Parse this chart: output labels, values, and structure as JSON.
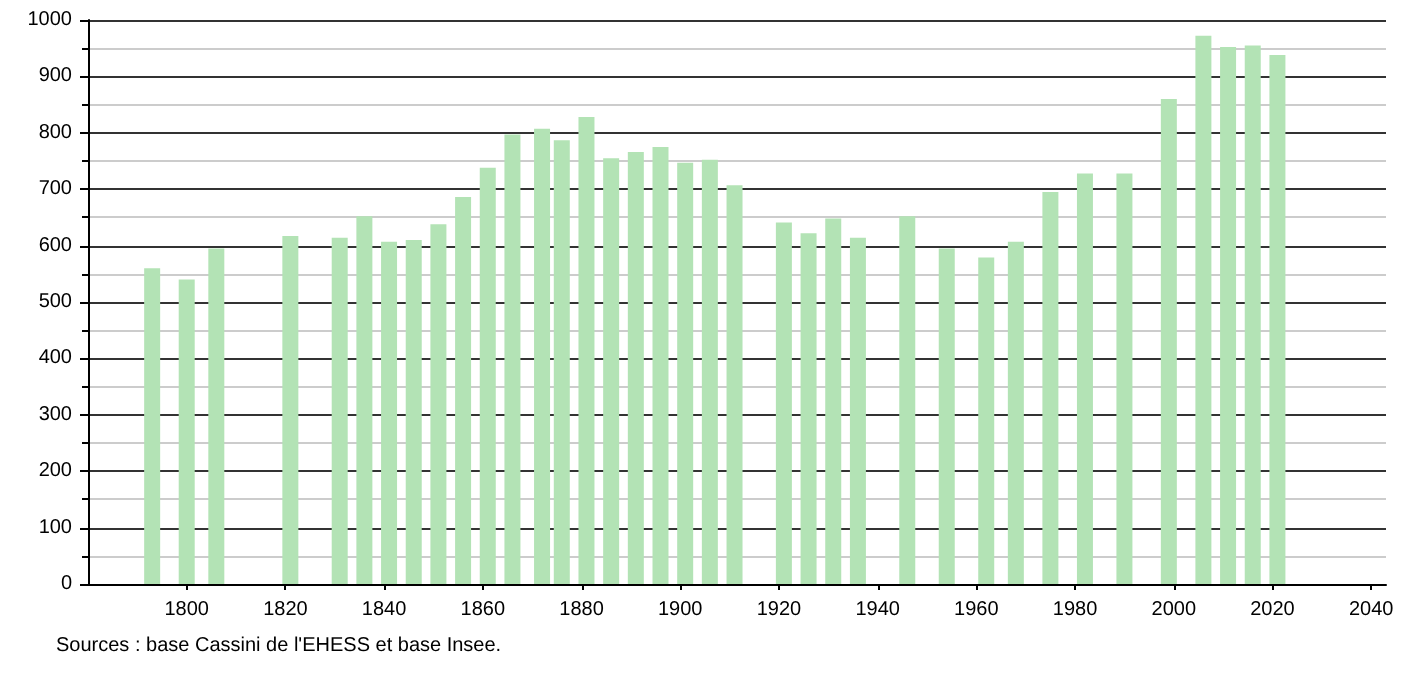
{
  "chart_data": {
    "type": "bar",
    "x": [
      1793,
      1800,
      1806,
      1821,
      1831,
      1836,
      1841,
      1846,
      1851,
      1856,
      1861,
      1866,
      1872,
      1876,
      1881,
      1886,
      1891,
      1896,
      1901,
      1906,
      1911,
      1921,
      1926,
      1931,
      1936,
      1946,
      1954,
      1962,
      1968,
      1975,
      1982,
      1990,
      1999,
      2006,
      2011,
      2016,
      2021
    ],
    "values": [
      560,
      540,
      595,
      617,
      614,
      652,
      607,
      610,
      638,
      686,
      738,
      797,
      807,
      787,
      828,
      755,
      766,
      775,
      747,
      752,
      707,
      641,
      622,
      648,
      614,
      652,
      595,
      579,
      607,
      695,
      728,
      728,
      860,
      972,
      952,
      955,
      938
    ],
    "color": "#b3e3b5",
    "xlim": [
      1780,
      2043
    ],
    "xticks": [
      1800,
      1820,
      1840,
      1860,
      1880,
      1900,
      1920,
      1940,
      1960,
      1980,
      2000,
      2020,
      2040
    ],
    "ylim": [
      0,
      1000
    ],
    "yticks": [
      0,
      100,
      200,
      300,
      400,
      500,
      600,
      700,
      800,
      900,
      1000
    ],
    "grid": "y",
    "annotations": [
      "Sources : base Cassini de l'EHESS et base Insee."
    ]
  }
}
